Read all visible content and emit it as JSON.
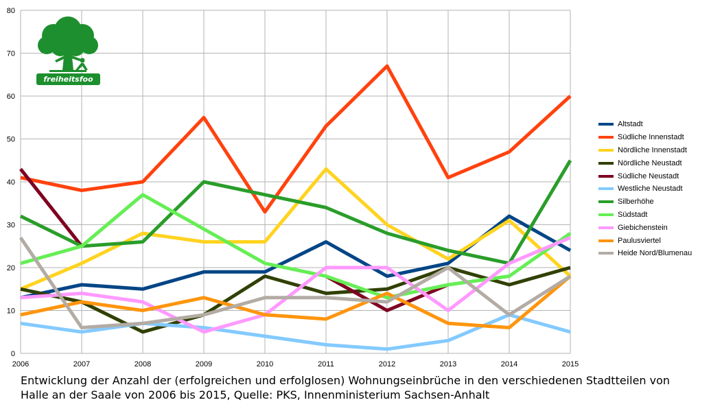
{
  "caption": "Entwicklung der Anzahl der (erfolgreichen und erfolglosen) Wohnungseinbrüche in den verschiedenen Stadtteilen von Halle an der Saale von 2006 bis 2015, Quelle: PKS, Innenministerium Sachsen-Anhalt",
  "logo": {
    "text": "freiheitsfoo",
    "icon": "tree-icon",
    "color": "#1d8f2e"
  },
  "chart_data": {
    "type": "line",
    "x": [
      2006,
      2007,
      2008,
      2009,
      2010,
      2011,
      2012,
      2013,
      2014,
      2015
    ],
    "ylim": [
      0,
      80
    ],
    "yticks": [
      0,
      10,
      20,
      30,
      40,
      50,
      60,
      70,
      80
    ],
    "grid": true,
    "legend": "right",
    "series": [
      {
        "name": "Altstadt",
        "color": "#004586",
        "values": [
          13,
          16,
          15,
          19,
          19,
          26,
          18,
          21,
          32,
          24
        ]
      },
      {
        "name": "Südliche Innenstadt",
        "color": "#ff420e",
        "values": [
          41,
          38,
          40,
          55,
          33,
          53,
          67,
          41,
          47,
          60
        ]
      },
      {
        "name": "Nördliche Innenstadt",
        "color": "#ffd320",
        "values": [
          15,
          21,
          28,
          26,
          26,
          43,
          30,
          22,
          31,
          18
        ]
      },
      {
        "name": "Nördliche Neustadt",
        "color": "#314004",
        "values": [
          15,
          12,
          5,
          9,
          18,
          14,
          15,
          20,
          16,
          20
        ]
      },
      {
        "name": "Südliche Neustadt",
        "color": "#7e0021",
        "values": [
          43,
          25,
          null,
          null,
          null,
          18,
          10,
          16,
          null,
          null
        ]
      },
      {
        "name": "Westliche Neustadt",
        "color": "#83caff",
        "values": [
          7,
          5,
          7,
          6,
          4,
          2,
          1,
          3,
          9,
          5
        ]
      },
      {
        "name": "Silberhöhe",
        "color": "#2a9d2a",
        "values": [
          32,
          25,
          26,
          40,
          37,
          34,
          28,
          24,
          21,
          45
        ]
      },
      {
        "name": "Südstadt",
        "color": "#66ee55",
        "values": [
          21,
          25,
          37,
          29,
          21,
          18,
          13,
          16,
          18,
          28
        ]
      },
      {
        "name": "Giebichenstein",
        "color": "#ff99ff",
        "values": [
          13,
          14,
          12,
          5,
          9,
          20,
          20,
          10,
          21,
          27
        ]
      },
      {
        "name": "Paulusviertel",
        "color": "#ff950e",
        "values": [
          9,
          12,
          10,
          13,
          9,
          8,
          14,
          7,
          6,
          18
        ]
      },
      {
        "name": "Heide Nord/Blumenau",
        "color": "#b3aca4",
        "values": [
          27,
          6,
          7,
          9,
          13,
          13,
          12,
          20,
          9,
          18
        ]
      }
    ]
  }
}
